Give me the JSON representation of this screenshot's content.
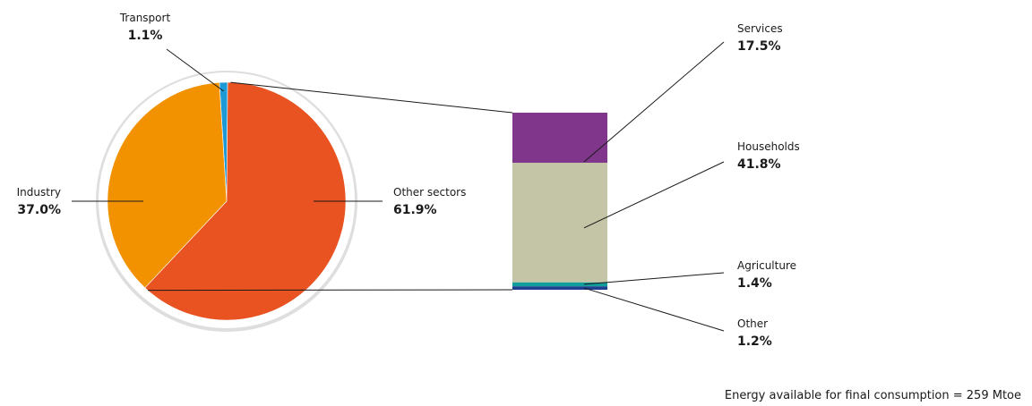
{
  "chart_data": [
    {
      "type": "pie",
      "categories": [
        "Transport",
        "Other sectors",
        "Industry"
      ],
      "values": [
        1.1,
        61.9,
        37.0
      ],
      "value_labels": [
        "1.1%",
        "61.9%",
        "37.0%"
      ],
      "colors": [
        "#1d9ad6",
        "#e85321",
        "#f29200"
      ]
    },
    {
      "type": "bar",
      "stacked": true,
      "categories": [
        "Other",
        "Agriculture",
        "Households",
        "Services"
      ],
      "values": [
        1.2,
        1.4,
        41.8,
        17.5
      ],
      "value_labels": [
        "1.2%",
        "1.4%",
        "41.8%",
        "17.5%"
      ],
      "colors": [
        "#1f3f8f",
        "#119d9a",
        "#c4c4a6",
        "#7f368b"
      ]
    }
  ],
  "footnote": "Energy available for final consumption = 259 Mtoe"
}
